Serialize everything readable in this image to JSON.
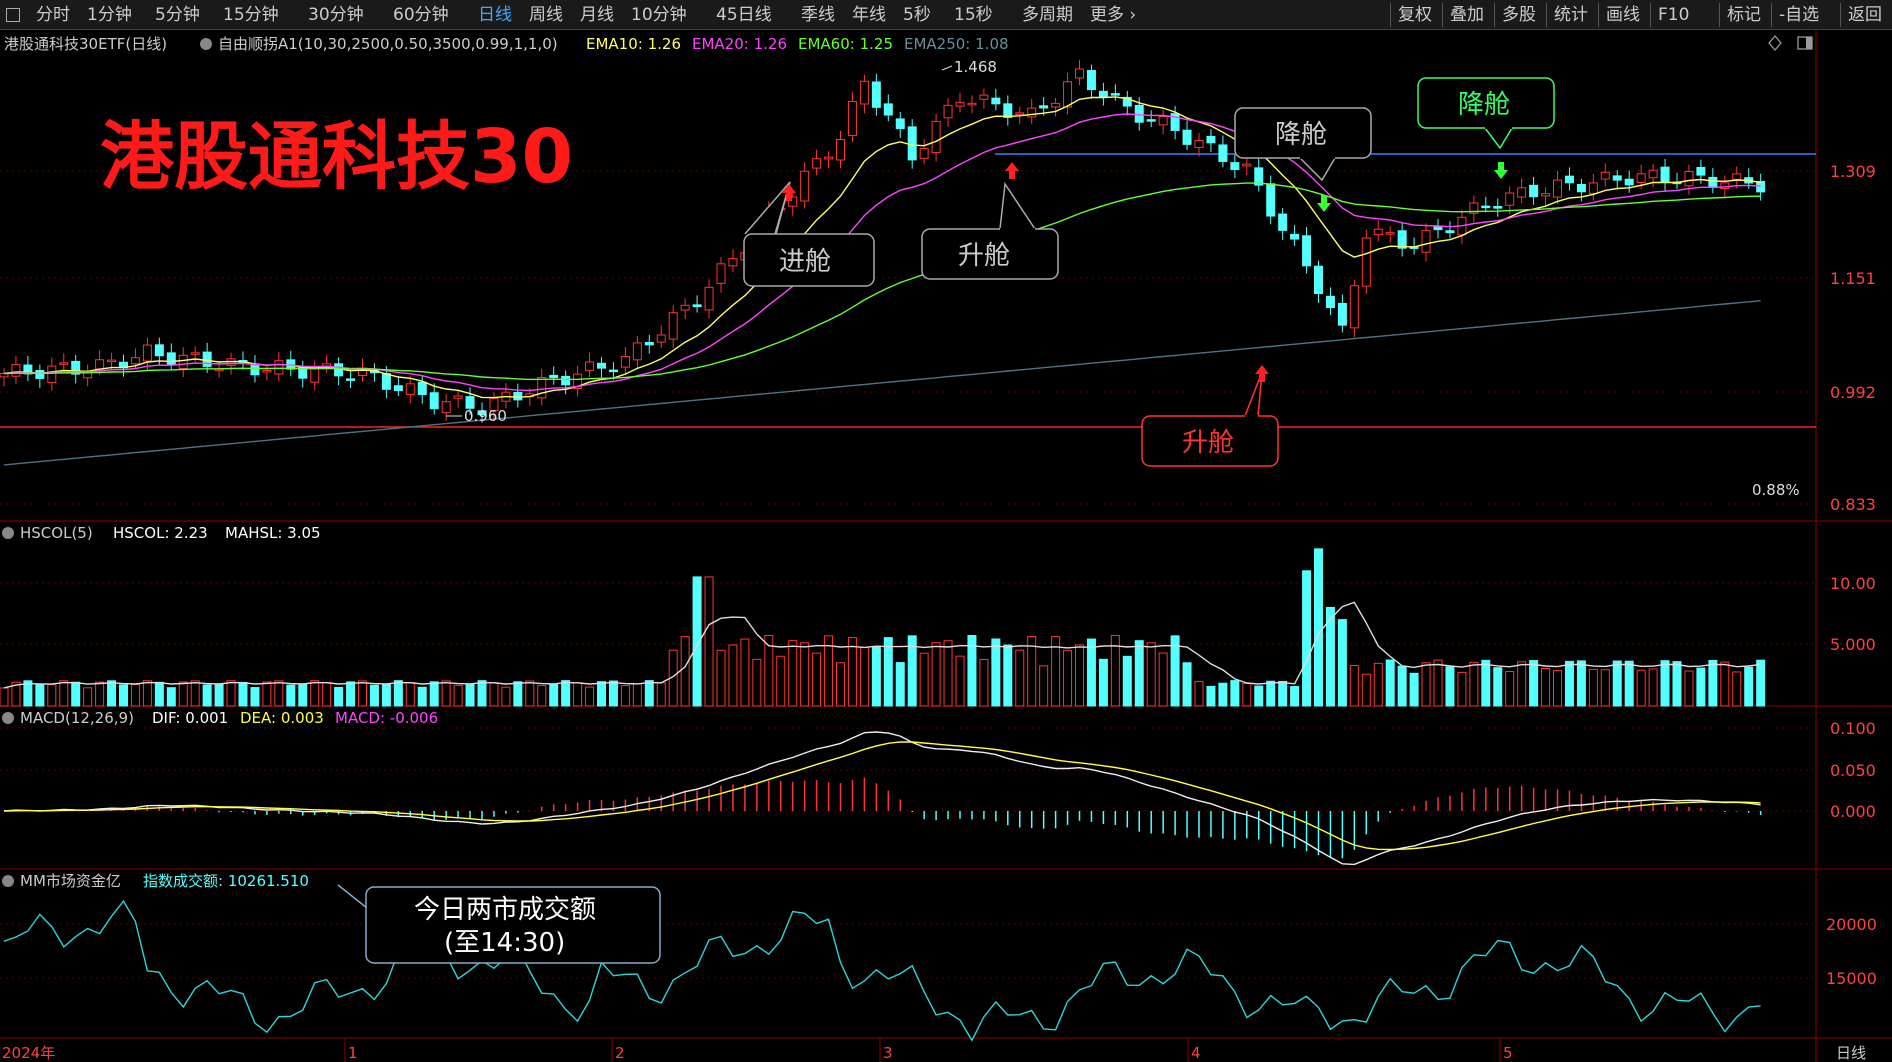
{
  "toolbar": {
    "left_items": [
      "分时",
      "1分钟",
      "5分钟",
      "15分钟",
      "30分钟",
      "60分钟",
      "日线",
      "周线",
      "月线",
      "10分钟",
      "45日线",
      "季线",
      "年线",
      "5秒",
      "15秒",
      "多周期",
      "更多"
    ],
    "active": "日线",
    "right_items": [
      "复权",
      "叠加",
      "多股",
      "统计",
      "画线",
      "F10",
      "标记",
      "-自选",
      "返回"
    ]
  },
  "main_panel": {
    "title": "港股通科技30ETF(日线)",
    "indicator": "自由顺拐A1(10,30,2500,0.50,3500,0.99,1,1,0)",
    "ema_labels": [
      {
        "text": "EMA10: 1.26",
        "color": "#ffff66"
      },
      {
        "text": "EMA20: 1.26",
        "color": "#ff44ff"
      },
      {
        "text": "EMA60: 1.25",
        "color": "#66ff33"
      },
      {
        "text": "EMA250: 1.08",
        "color": "#6a8fa0"
      }
    ],
    "big_title": "港股通科技30",
    "y_ticks": [
      "1.309",
      "1.151",
      "0.992",
      "0.833"
    ],
    "high_label": "1.468",
    "low_label": "0.960",
    "pct_label": "0.88%",
    "callouts": [
      {
        "text": "进舱",
        "color": "#cccccc"
      },
      {
        "text": "升舱",
        "color": "#cccccc"
      },
      {
        "text": "降舱",
        "color": "#cccccc"
      },
      {
        "text": "降舱",
        "color": "#33ff66"
      },
      {
        "text": "升舱",
        "color": "#ff3333"
      }
    ]
  },
  "volume_panel": {
    "title": "HSCOL(5)",
    "label1": "HSCOL: 2.23",
    "label2": "MAHSL: 3.05",
    "y_ticks": [
      "10.00",
      "5.000"
    ]
  },
  "macd_panel": {
    "title": "MACD(12,26,9)",
    "dif": "DIF: 0.001",
    "dea": "DEA: 0.003",
    "macd": "MACD: -0.006",
    "y_ticks": [
      "0.100",
      "0.050",
      "0.000"
    ]
  },
  "mm_panel": {
    "title": "MM市场资金亿",
    "label": "指数成交额: 10261.510",
    "callout_line1": "今日两市成交额",
    "callout_line2": "(至14:30)",
    "y_ticks": [
      "20000",
      "15000"
    ]
  },
  "x_axis": {
    "labels": [
      "2024年",
      "1",
      "2",
      "3",
      "4",
      "5"
    ],
    "right_label": "日线"
  },
  "colors": {
    "up": "#ff3333",
    "down": "#54ffff",
    "ema10": "#ffff66",
    "ema20": "#ff44ff",
    "ema60": "#66ff33",
    "ema250": "#4f7281",
    "grid": "#550000",
    "title_red": "#ff1a1a"
  },
  "chart_data": {
    "type": "candlestick",
    "x_labels": [
      "2024年",
      "1",
      "2",
      "3",
      "4",
      "5"
    ],
    "price": {
      "high": 1.468,
      "low": 0.96,
      "y_ticks": [
        1.309,
        1.151,
        0.992,
        0.833
      ]
    },
    "volume_ticks": [
      10.0,
      5.0
    ],
    "macd_ticks": [
      0.1,
      0.05,
      0.0
    ],
    "mm_ticks": [
      20000,
      15000
    ]
  }
}
